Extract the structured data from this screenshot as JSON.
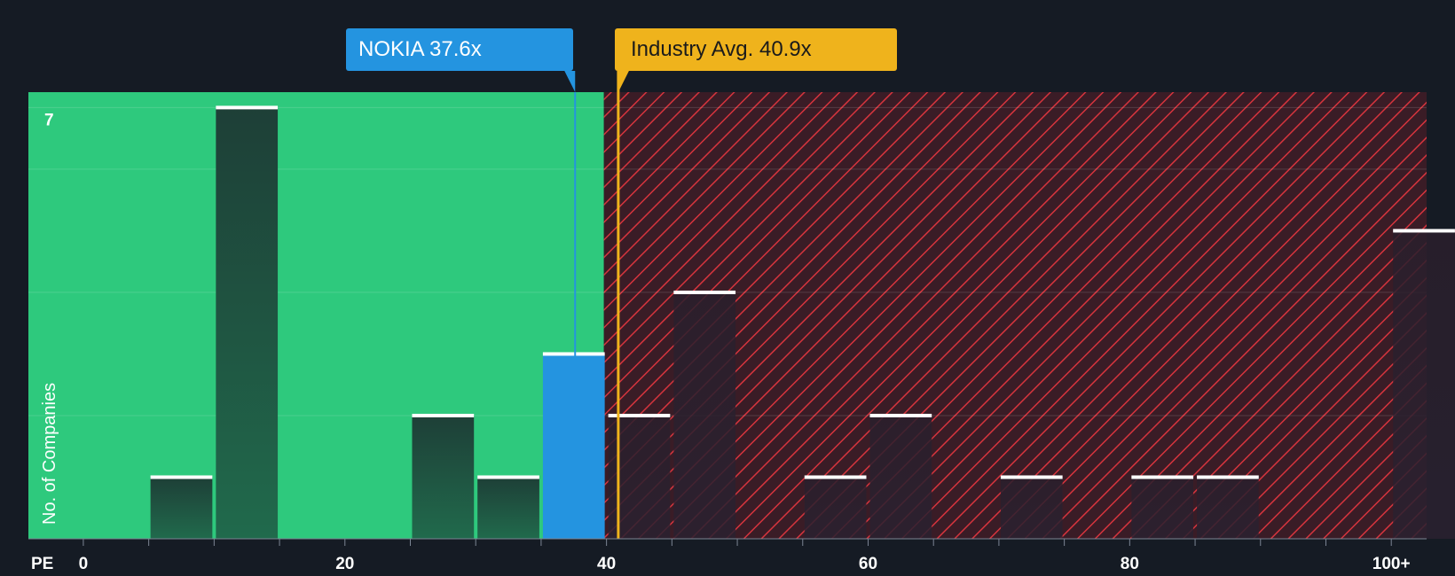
{
  "chart_data": {
    "type": "bar",
    "xlabel": "PE",
    "ylabel": "No. of Companies",
    "x_ticks": [
      "0",
      "20",
      "40",
      "60",
      "80",
      "100+"
    ],
    "x_tick_values": [
      0,
      20,
      40,
      60,
      80,
      100
    ],
    "y_tick_labels": [
      "7"
    ],
    "xlim": [
      -4.2,
      102.7
    ],
    "ylim": [
      0,
      7.25
    ],
    "bin_width": 5,
    "bins": [
      {
        "start": 5,
        "count": 1
      },
      {
        "start": 10,
        "count": 7
      },
      {
        "start": 25,
        "count": 2
      },
      {
        "start": 30,
        "count": 1
      },
      {
        "start": 35,
        "count": 3,
        "highlight": true
      },
      {
        "start": 40,
        "count": 2
      },
      {
        "start": 45,
        "count": 4
      },
      {
        "start": 55,
        "count": 1
      },
      {
        "start": 60,
        "count": 2
      },
      {
        "start": 70,
        "count": 1
      },
      {
        "start": 80,
        "count": 1
      },
      {
        "start": 85,
        "count": 1
      },
      {
        "start": 100,
        "count": 5
      }
    ],
    "company": {
      "label": "NOKIA 37.6x",
      "value": 37.6
    },
    "industry": {
      "label": "Industry Avg. 40.9x",
      "value": 40.9
    },
    "fair_range_end": 39.8,
    "grid": true,
    "colors": {
      "background": "#151b24",
      "fair_zone": "#2ec97d",
      "expensive_zone": "#3a1c26",
      "hatch": "#d6343d",
      "bar": "#1f4a3b",
      "highlight_bar": "#2494e0",
      "company_line": "#2494e0",
      "industry_line": "#efb31c",
      "bar_cap": "#ffffff"
    }
  }
}
